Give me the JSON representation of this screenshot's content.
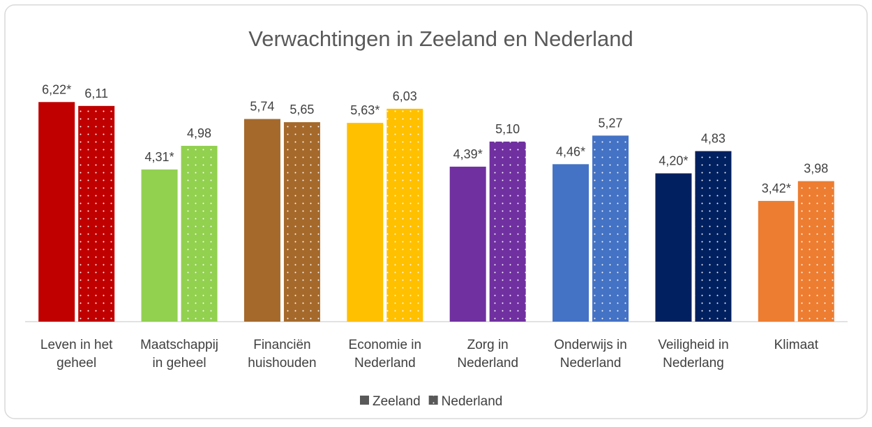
{
  "chart_data": {
    "type": "bar",
    "title": "Verwachtingen in Zeeland en Nederland",
    "categories": [
      [
        "Leven in het",
        "geheel"
      ],
      [
        "Maatschappij",
        "in geheel"
      ],
      [
        "Financiën",
        "huishouden"
      ],
      [
        "Economie in",
        "Nederland"
      ],
      [
        "Zorg in",
        "Nederland"
      ],
      [
        "Onderwijs in",
        "Nederland"
      ],
      [
        "Veiligheid in",
        "Nederlang"
      ],
      [
        "Klimaat"
      ]
    ],
    "colors": [
      "#c00000",
      "#92d050",
      "#a5692b",
      "#ffc000",
      "#7030a0",
      "#4472c4",
      "#002060",
      "#ed7d31"
    ],
    "legend_color": "#595959",
    "series": [
      {
        "name": "Zeeland",
        "pattern": "solid",
        "values": [
          6.22,
          4.31,
          5.74,
          5.63,
          4.39,
          4.46,
          4.2,
          3.42
        ],
        "value_labels": [
          "6,22*",
          "4,31*",
          "5,74",
          "5,63*",
          "4,39*",
          "4,46*",
          "4,20*",
          "3,42*"
        ]
      },
      {
        "name": "Nederland",
        "pattern": "dotted",
        "values": [
          6.11,
          4.98,
          5.65,
          6.03,
          5.1,
          5.27,
          4.83,
          3.98
        ],
        "value_labels": [
          "6,11",
          "4,98",
          "5,65",
          "6,03",
          "5,10",
          "5,27",
          "4,83",
          "3,98"
        ]
      }
    ],
    "ylim": [
      0,
      7
    ],
    "legend": "bottom"
  }
}
